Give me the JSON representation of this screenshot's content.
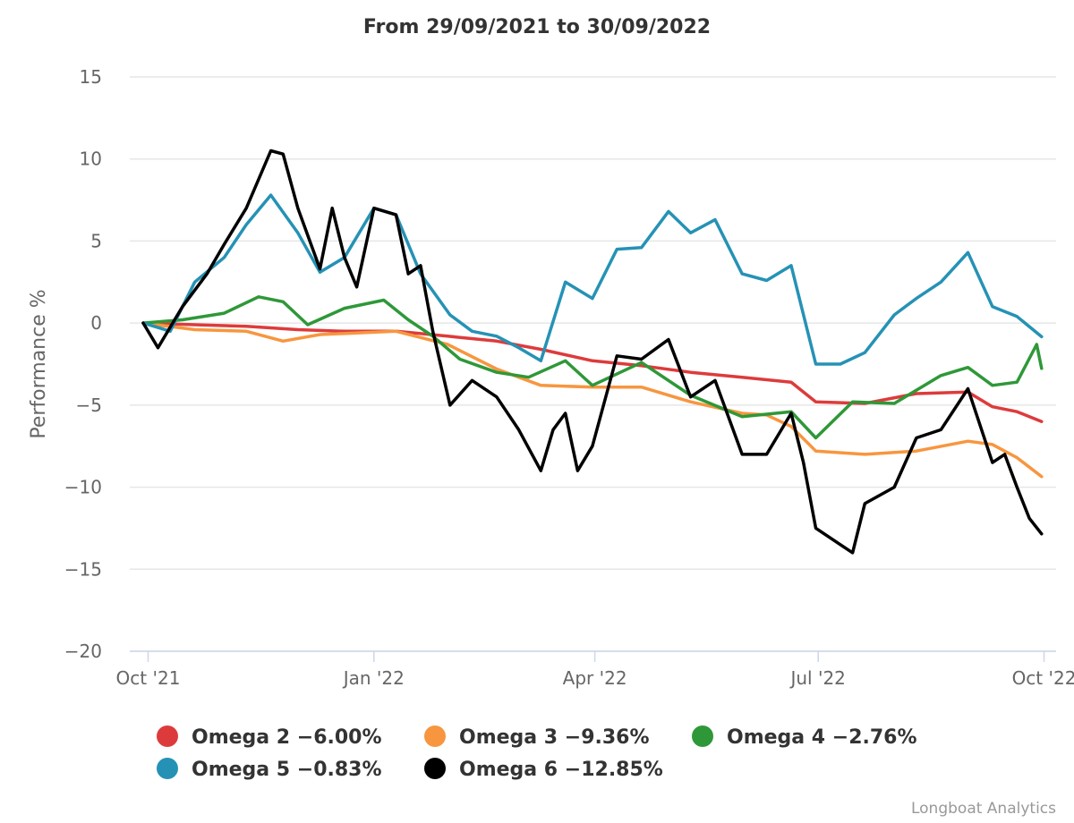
{
  "chart_data": {
    "type": "line",
    "title": "From 29/09/2021 to 30/09/2022",
    "ylabel": "Performance %",
    "xlabel": "",
    "ylim": [
      -20,
      15
    ],
    "yticks": [
      15,
      10,
      5,
      0,
      -5,
      -10,
      -15,
      -20
    ],
    "xlim": [
      "2021-09-29",
      "2022-10-03"
    ],
    "xticks": [
      {
        "date": "2021-10-01",
        "label": "Oct '21"
      },
      {
        "date": "2022-01-01",
        "label": "Jan '22"
      },
      {
        "date": "2022-04-01",
        "label": "Apr '22"
      },
      {
        "date": "2022-07-01",
        "label": "Jul '22"
      },
      {
        "date": "2022-10-01",
        "label": "Oct '22"
      }
    ],
    "grid": true,
    "legend_position": "bottom",
    "credit": "Longboat Analytics",
    "series": [
      {
        "name": "Omega 2",
        "legend_label": "Omega 2 -6.00%",
        "color": "#dd3b3b",
        "points": [
          [
            "2021-09-29",
            0.0
          ],
          [
            "2021-10-20",
            -0.1
          ],
          [
            "2021-11-10",
            -0.2
          ],
          [
            "2021-12-01",
            -0.4
          ],
          [
            "2021-12-20",
            -0.5
          ],
          [
            "2022-01-10",
            -0.5
          ],
          [
            "2022-01-31",
            -0.8
          ],
          [
            "2022-02-20",
            -1.1
          ],
          [
            "2022-03-10",
            -1.6
          ],
          [
            "2022-03-31",
            -2.3
          ],
          [
            "2022-04-20",
            -2.6
          ],
          [
            "2022-05-10",
            -3.0
          ],
          [
            "2022-05-31",
            -3.3
          ],
          [
            "2022-06-20",
            -3.6
          ],
          [
            "2022-06-30",
            -4.8
          ],
          [
            "2022-07-20",
            -4.9
          ],
          [
            "2022-08-10",
            -4.3
          ],
          [
            "2022-08-31",
            -4.2
          ],
          [
            "2022-09-10",
            -5.1
          ],
          [
            "2022-09-20",
            -5.4
          ],
          [
            "2022-09-30",
            -6.0
          ]
        ]
      },
      {
        "name": "Omega 3",
        "legend_label": "Omega 3 -9.36%",
        "color": "#f7963f",
        "points": [
          [
            "2021-09-29",
            0.0
          ],
          [
            "2021-10-20",
            -0.4
          ],
          [
            "2021-11-10",
            -0.5
          ],
          [
            "2021-11-25",
            -1.1
          ],
          [
            "2021-12-10",
            -0.7
          ],
          [
            "2022-01-10",
            -0.5
          ],
          [
            "2022-01-31",
            -1.3
          ],
          [
            "2022-02-20",
            -2.8
          ],
          [
            "2022-03-10",
            -3.8
          ],
          [
            "2022-03-31",
            -3.9
          ],
          [
            "2022-04-20",
            -3.9
          ],
          [
            "2022-05-10",
            -4.8
          ],
          [
            "2022-05-31",
            -5.5
          ],
          [
            "2022-06-10",
            -5.6
          ],
          [
            "2022-06-20",
            -6.3
          ],
          [
            "2022-06-30",
            -7.8
          ],
          [
            "2022-07-20",
            -8.0
          ],
          [
            "2022-08-10",
            -7.8
          ],
          [
            "2022-08-31",
            -7.2
          ],
          [
            "2022-09-10",
            -7.4
          ],
          [
            "2022-09-20",
            -8.2
          ],
          [
            "2022-09-30",
            -9.36
          ]
        ]
      },
      {
        "name": "Omega 4",
        "legend_label": "Omega 4 -2.76%",
        "color": "#2e9838",
        "points": [
          [
            "2021-09-29",
            0.0
          ],
          [
            "2021-10-15",
            0.2
          ],
          [
            "2021-11-01",
            0.6
          ],
          [
            "2021-11-15",
            1.6
          ],
          [
            "2021-11-25",
            1.3
          ],
          [
            "2021-12-05",
            -0.1
          ],
          [
            "2021-12-20",
            0.9
          ],
          [
            "2022-01-05",
            1.4
          ],
          [
            "2022-01-15",
            0.2
          ],
          [
            "2022-01-25",
            -0.8
          ],
          [
            "2022-02-05",
            -2.2
          ],
          [
            "2022-02-20",
            -3.0
          ],
          [
            "2022-03-05",
            -3.3
          ],
          [
            "2022-03-20",
            -2.3
          ],
          [
            "2022-03-31",
            -3.8
          ],
          [
            "2022-04-20",
            -2.4
          ],
          [
            "2022-05-10",
            -4.4
          ],
          [
            "2022-05-31",
            -5.7
          ],
          [
            "2022-06-20",
            -5.4
          ],
          [
            "2022-06-30",
            -7.0
          ],
          [
            "2022-07-15",
            -4.8
          ],
          [
            "2022-08-01",
            -4.9
          ],
          [
            "2022-08-20",
            -3.2
          ],
          [
            "2022-08-31",
            -2.7
          ],
          [
            "2022-09-10",
            -3.8
          ],
          [
            "2022-09-20",
            -3.6
          ],
          [
            "2022-09-28",
            -1.3
          ],
          [
            "2022-09-30",
            -2.76
          ]
        ]
      },
      {
        "name": "Omega 5",
        "legend_label": "Omega 5 -0.83%",
        "color": "#2592b5",
        "points": [
          [
            "2021-09-29",
            0.0
          ],
          [
            "2021-10-10",
            -0.5
          ],
          [
            "2021-10-20",
            2.5
          ],
          [
            "2021-11-01",
            4.0
          ],
          [
            "2021-11-10",
            6.0
          ],
          [
            "2021-11-20",
            7.8
          ],
          [
            "2021-12-01",
            5.5
          ],
          [
            "2021-12-10",
            3.1
          ],
          [
            "2021-12-20",
            4.0
          ],
          [
            "2022-01-01",
            7.0
          ],
          [
            "2022-01-10",
            6.6
          ],
          [
            "2022-01-20",
            3.0
          ],
          [
            "2022-02-01",
            0.5
          ],
          [
            "2022-02-10",
            -0.5
          ],
          [
            "2022-02-20",
            -0.8
          ],
          [
            "2022-03-01",
            -1.5
          ],
          [
            "2022-03-10",
            -2.3
          ],
          [
            "2022-03-20",
            2.5
          ],
          [
            "2022-03-31",
            1.5
          ],
          [
            "2022-04-10",
            4.5
          ],
          [
            "2022-04-20",
            4.6
          ],
          [
            "2022-05-01",
            6.8
          ],
          [
            "2022-05-10",
            5.5
          ],
          [
            "2022-05-20",
            6.3
          ],
          [
            "2022-05-31",
            3.0
          ],
          [
            "2022-06-10",
            2.6
          ],
          [
            "2022-06-20",
            3.5
          ],
          [
            "2022-06-30",
            -2.5
          ],
          [
            "2022-07-10",
            -2.5
          ],
          [
            "2022-07-20",
            -1.8
          ],
          [
            "2022-08-01",
            0.5
          ],
          [
            "2022-08-10",
            1.5
          ],
          [
            "2022-08-20",
            2.5
          ],
          [
            "2022-08-31",
            4.3
          ],
          [
            "2022-09-10",
            1.0
          ],
          [
            "2022-09-20",
            0.4
          ],
          [
            "2022-09-30",
            -0.83
          ]
        ]
      },
      {
        "name": "Omega 6",
        "legend_label": "Omega 6 -12.85%",
        "color": "#000000",
        "points": [
          [
            "2021-09-29",
            0.0
          ],
          [
            "2021-10-05",
            -1.5
          ],
          [
            "2021-10-15",
            1.0
          ],
          [
            "2021-10-25",
            3.0
          ],
          [
            "2021-11-01",
            4.8
          ],
          [
            "2021-11-10",
            7.0
          ],
          [
            "2021-11-20",
            10.5
          ],
          [
            "2021-11-25",
            10.3
          ],
          [
            "2021-12-01",
            7.0
          ],
          [
            "2021-12-10",
            3.3
          ],
          [
            "2021-12-15",
            7.0
          ],
          [
            "2021-12-20",
            4.0
          ],
          [
            "2021-12-25",
            2.2
          ],
          [
            "2022-01-01",
            7.0
          ],
          [
            "2022-01-10",
            6.6
          ],
          [
            "2022-01-15",
            3.0
          ],
          [
            "2022-01-20",
            3.5
          ],
          [
            "2022-01-25",
            -0.5
          ],
          [
            "2022-02-01",
            -5.0
          ],
          [
            "2022-02-10",
            -3.5
          ],
          [
            "2022-02-20",
            -4.5
          ],
          [
            "2022-03-01",
            -6.5
          ],
          [
            "2022-03-10",
            -9.0
          ],
          [
            "2022-03-15",
            -6.5
          ],
          [
            "2022-03-20",
            -5.5
          ],
          [
            "2022-03-25",
            -9.0
          ],
          [
            "2022-03-31",
            -7.5
          ],
          [
            "2022-04-10",
            -2.0
          ],
          [
            "2022-04-20",
            -2.2
          ],
          [
            "2022-05-01",
            -1.0
          ],
          [
            "2022-05-10",
            -4.5
          ],
          [
            "2022-05-20",
            -3.5
          ],
          [
            "2022-05-31",
            -8.0
          ],
          [
            "2022-06-10",
            -8.0
          ],
          [
            "2022-06-20",
            -5.5
          ],
          [
            "2022-06-25",
            -8.5
          ],
          [
            "2022-06-30",
            -12.5
          ],
          [
            "2022-07-10",
            -13.5
          ],
          [
            "2022-07-15",
            -14.0
          ],
          [
            "2022-07-20",
            -11.0
          ],
          [
            "2022-08-01",
            -10.0
          ],
          [
            "2022-08-10",
            -7.0
          ],
          [
            "2022-08-20",
            -6.5
          ],
          [
            "2022-08-31",
            -4.0
          ],
          [
            "2022-09-10",
            -8.5
          ],
          [
            "2022-09-15",
            -8.0
          ],
          [
            "2022-09-20",
            -10.0
          ],
          [
            "2022-09-25",
            -11.9
          ],
          [
            "2022-09-30",
            -12.85
          ]
        ]
      }
    ]
  }
}
